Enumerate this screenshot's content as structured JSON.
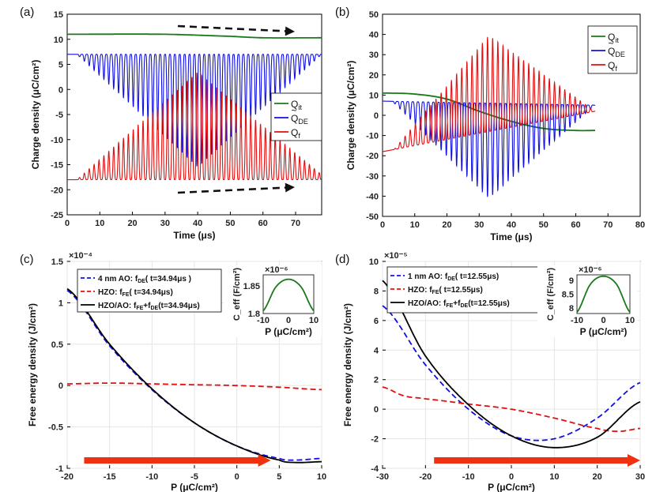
{
  "chart_data": [
    {
      "panel": "(a)",
      "type": "line",
      "xlabel": "Time (μs)",
      "ylabel": "Charge density (μC/cm²)",
      "xlim": [
        0,
        78
      ],
      "ylim": [
        -25,
        15
      ],
      "xticks": [
        0,
        10,
        20,
        30,
        40,
        50,
        60,
        70
      ],
      "yticks": [
        -25,
        -20,
        -15,
        -10,
        -5,
        0,
        5,
        10,
        15
      ],
      "legend_loc": "center-right",
      "series": [
        {
          "name": "Q_it",
          "label": "Q",
          "sub": "it",
          "color": "#1a7a1a",
          "x": [
            0,
            30,
            50,
            60,
            78
          ],
          "y": [
            11,
            11,
            10.6,
            10.3,
            10.3
          ]
        },
        {
          "name": "Q_DE",
          "label": "Q",
          "sub": "DE",
          "tilde": true,
          "color": "#1010e0",
          "x": [
            0,
            3,
            40,
            78
          ],
          "y": [
            7,
            7,
            -15.5,
            7
          ]
        },
        {
          "name": "Q_f",
          "label": "Q",
          "sub": "f",
          "color": "#e01010",
          "x": [
            0,
            3,
            40,
            78
          ],
          "y": [
            -18,
            -18,
            3.5,
            -17
          ]
        }
      ],
      "annotations": [
        "dashed arrow top (trend →)",
        "dashed arrow bottom (trend →)"
      ]
    },
    {
      "panel": "(b)",
      "type": "line",
      "xlabel": "Time (μs)",
      "ylabel": "Charge density (μC/cm²)",
      "xlim": [
        0,
        80
      ],
      "ylim": [
        -50,
        50
      ],
      "xticks": [
        0,
        10,
        20,
        30,
        40,
        50,
        60,
        70,
        80
      ],
      "yticks": [
        -50,
        -40,
        -30,
        -20,
        -10,
        0,
        10,
        20,
        30,
        40,
        50
      ],
      "legend_loc": "top-right",
      "series": [
        {
          "name": "Q_it",
          "label": "Q",
          "sub": "it",
          "color": "#1a7a1a",
          "x": [
            0,
            10,
            20,
            30,
            40,
            50,
            60,
            66
          ],
          "y": [
            11,
            10.5,
            8,
            2,
            -3,
            -6.5,
            -7.5,
            -7.5
          ]
        },
        {
          "name": "Q_DE",
          "label": "Q",
          "sub": "DE",
          "tilde": true,
          "color": "#1010e0",
          "x": [
            0,
            3,
            33,
            66
          ],
          "y": [
            7,
            7,
            -41,
            5
          ]
        },
        {
          "name": "Q_f",
          "label": "Q",
          "sub": "f",
          "color": "#e01010",
          "x": [
            0,
            3,
            33,
            66
          ],
          "y": [
            -18,
            -18,
            39.5,
            2
          ]
        }
      ]
    },
    {
      "panel": "(c)",
      "type": "line",
      "xlabel": "P (μC/cm²)",
      "ylabel": "Free energy density (J/cm²)",
      "yscale": "×10⁻⁴",
      "xlim": [
        -20,
        10
      ],
      "ylim": [
        -1,
        1.5
      ],
      "xticks": [
        -20,
        -15,
        -10,
        -5,
        0,
        5,
        10
      ],
      "yticks": [
        -1,
        -0.5,
        0,
        0.5,
        1,
        1.5
      ],
      "legend_loc": "top-left",
      "series": [
        {
          "name": "4 nm AO: f_DE( t=34.94μs )",
          "label": "4 nm AO: f",
          "sub": "DE",
          "tail": "( t=34.94μs )",
          "color": "#1010e0",
          "dash": true,
          "x": [
            -20,
            -15,
            -10,
            -5,
            0,
            5,
            7,
            10
          ],
          "y": [
            1.15,
            0.48,
            -0.05,
            -0.45,
            -0.73,
            -0.88,
            -0.9,
            -0.88
          ]
        },
        {
          "name": "HZO: f_FE( t=34.94μs)",
          "label": "HZO: f",
          "sub": "FE",
          "tail": "( t=34.94μs)",
          "color": "#e01010",
          "dash": true,
          "x": [
            -20,
            -15,
            -10,
            -5,
            0,
            5,
            10
          ],
          "y": [
            0.02,
            0.03,
            0.02,
            0.01,
            0,
            -0.02,
            -0.05
          ]
        },
        {
          "name": "HZO/AO: f_FE+f_DE(t=34.94μs)",
          "label": "HZO/AO: f",
          "sub": "FE",
          "mid": "+f",
          "sub2": "DE",
          "tail": "(t=34.94μs)",
          "color": "#000000",
          "dash": false,
          "x": [
            -20,
            -15,
            -10,
            -5,
            0,
            5,
            7,
            10
          ],
          "y": [
            1.17,
            0.5,
            -0.04,
            -0.45,
            -0.73,
            -0.9,
            -0.93,
            -0.92
          ]
        }
      ],
      "inset": {
        "ylabel": "C_eff (F/cm²)",
        "xlabel": "P (μC/cm²)",
        "yscale": "×10⁻⁶",
        "xlim": [
          -10,
          10
        ],
        "ylim": [
          1.8,
          1.87
        ],
        "xticks": [
          -10,
          0,
          10
        ],
        "yticks": [
          1.8,
          1.85
        ],
        "x": [
          -10,
          -5,
          0,
          5,
          10
        ],
        "y": [
          1.805,
          1.848,
          1.862,
          1.848,
          1.805
        ]
      },
      "arrow": "red arrow along x-axis from -18 to 4"
    },
    {
      "panel": "(d)",
      "type": "line",
      "xlabel": "P (μC/cm²)",
      "ylabel": "Free energy density (J/cm²)",
      "yscale": "×10⁻⁵",
      "xlim": [
        -30,
        30
      ],
      "ylim": [
        -4,
        10
      ],
      "xticks": [
        -30,
        -20,
        -10,
        0,
        10,
        20,
        30
      ],
      "yticks": [
        -4,
        -2,
        0,
        2,
        4,
        6,
        8,
        10
      ],
      "legend_loc": "top-left",
      "series": [
        {
          "name": "1 nm AO: f_DE( t=12.55μs)",
          "label": "1 nm AO: f",
          "sub": "DE",
          "tail": "( t=12.55μs)",
          "color": "#1010e0",
          "dash": true,
          "x": [
            -30,
            -20,
            -10,
            0,
            10,
            20,
            30
          ],
          "y": [
            7,
            3,
            0,
            -1.8,
            -2,
            -0.6,
            1.8
          ]
        },
        {
          "name": "HZO: f_FE( t=12.55μs)",
          "label": "HZO: f",
          "sub": "FE",
          "tail": "( t=12.55μs)",
          "color": "#e01010",
          "dash": true,
          "x": [
            -30,
            -25,
            -20,
            -10,
            0,
            10,
            20,
            25,
            30
          ],
          "y": [
            1.5,
            0.9,
            0.7,
            0.35,
            0,
            -0.6,
            -1.3,
            -1.5,
            -1.3
          ]
        },
        {
          "name": "HZO/AO: f_FE+f_DE(t=12.55μs)",
          "label": "HZO/AO: f",
          "sub": "FE",
          "mid": "+f",
          "sub2": "DE",
          "tail": "(t=12.55μs)",
          "color": "#000000",
          "dash": false,
          "x": [
            -30,
            -20,
            -10,
            0,
            10,
            20,
            30
          ],
          "y": [
            8.7,
            3.6,
            0.3,
            -1.8,
            -2.6,
            -1.9,
            0.5
          ]
        }
      ],
      "inset": {
        "ylabel": "C_eff (F/cm²)",
        "xlabel": "P (μC/cm²)",
        "yscale": "×10⁻⁶",
        "xlim": [
          -10,
          10
        ],
        "ylim": [
          7.8,
          9.2
        ],
        "xticks": [
          -10,
          0,
          10
        ],
        "yticks": [
          8,
          8.5,
          9
        ],
        "x": [
          -10,
          -5,
          0,
          5,
          10
        ],
        "y": [
          7.85,
          8.85,
          9.15,
          8.85,
          7.85
        ]
      },
      "arrow": "red arrow along x-axis from -18 to 30"
    }
  ]
}
